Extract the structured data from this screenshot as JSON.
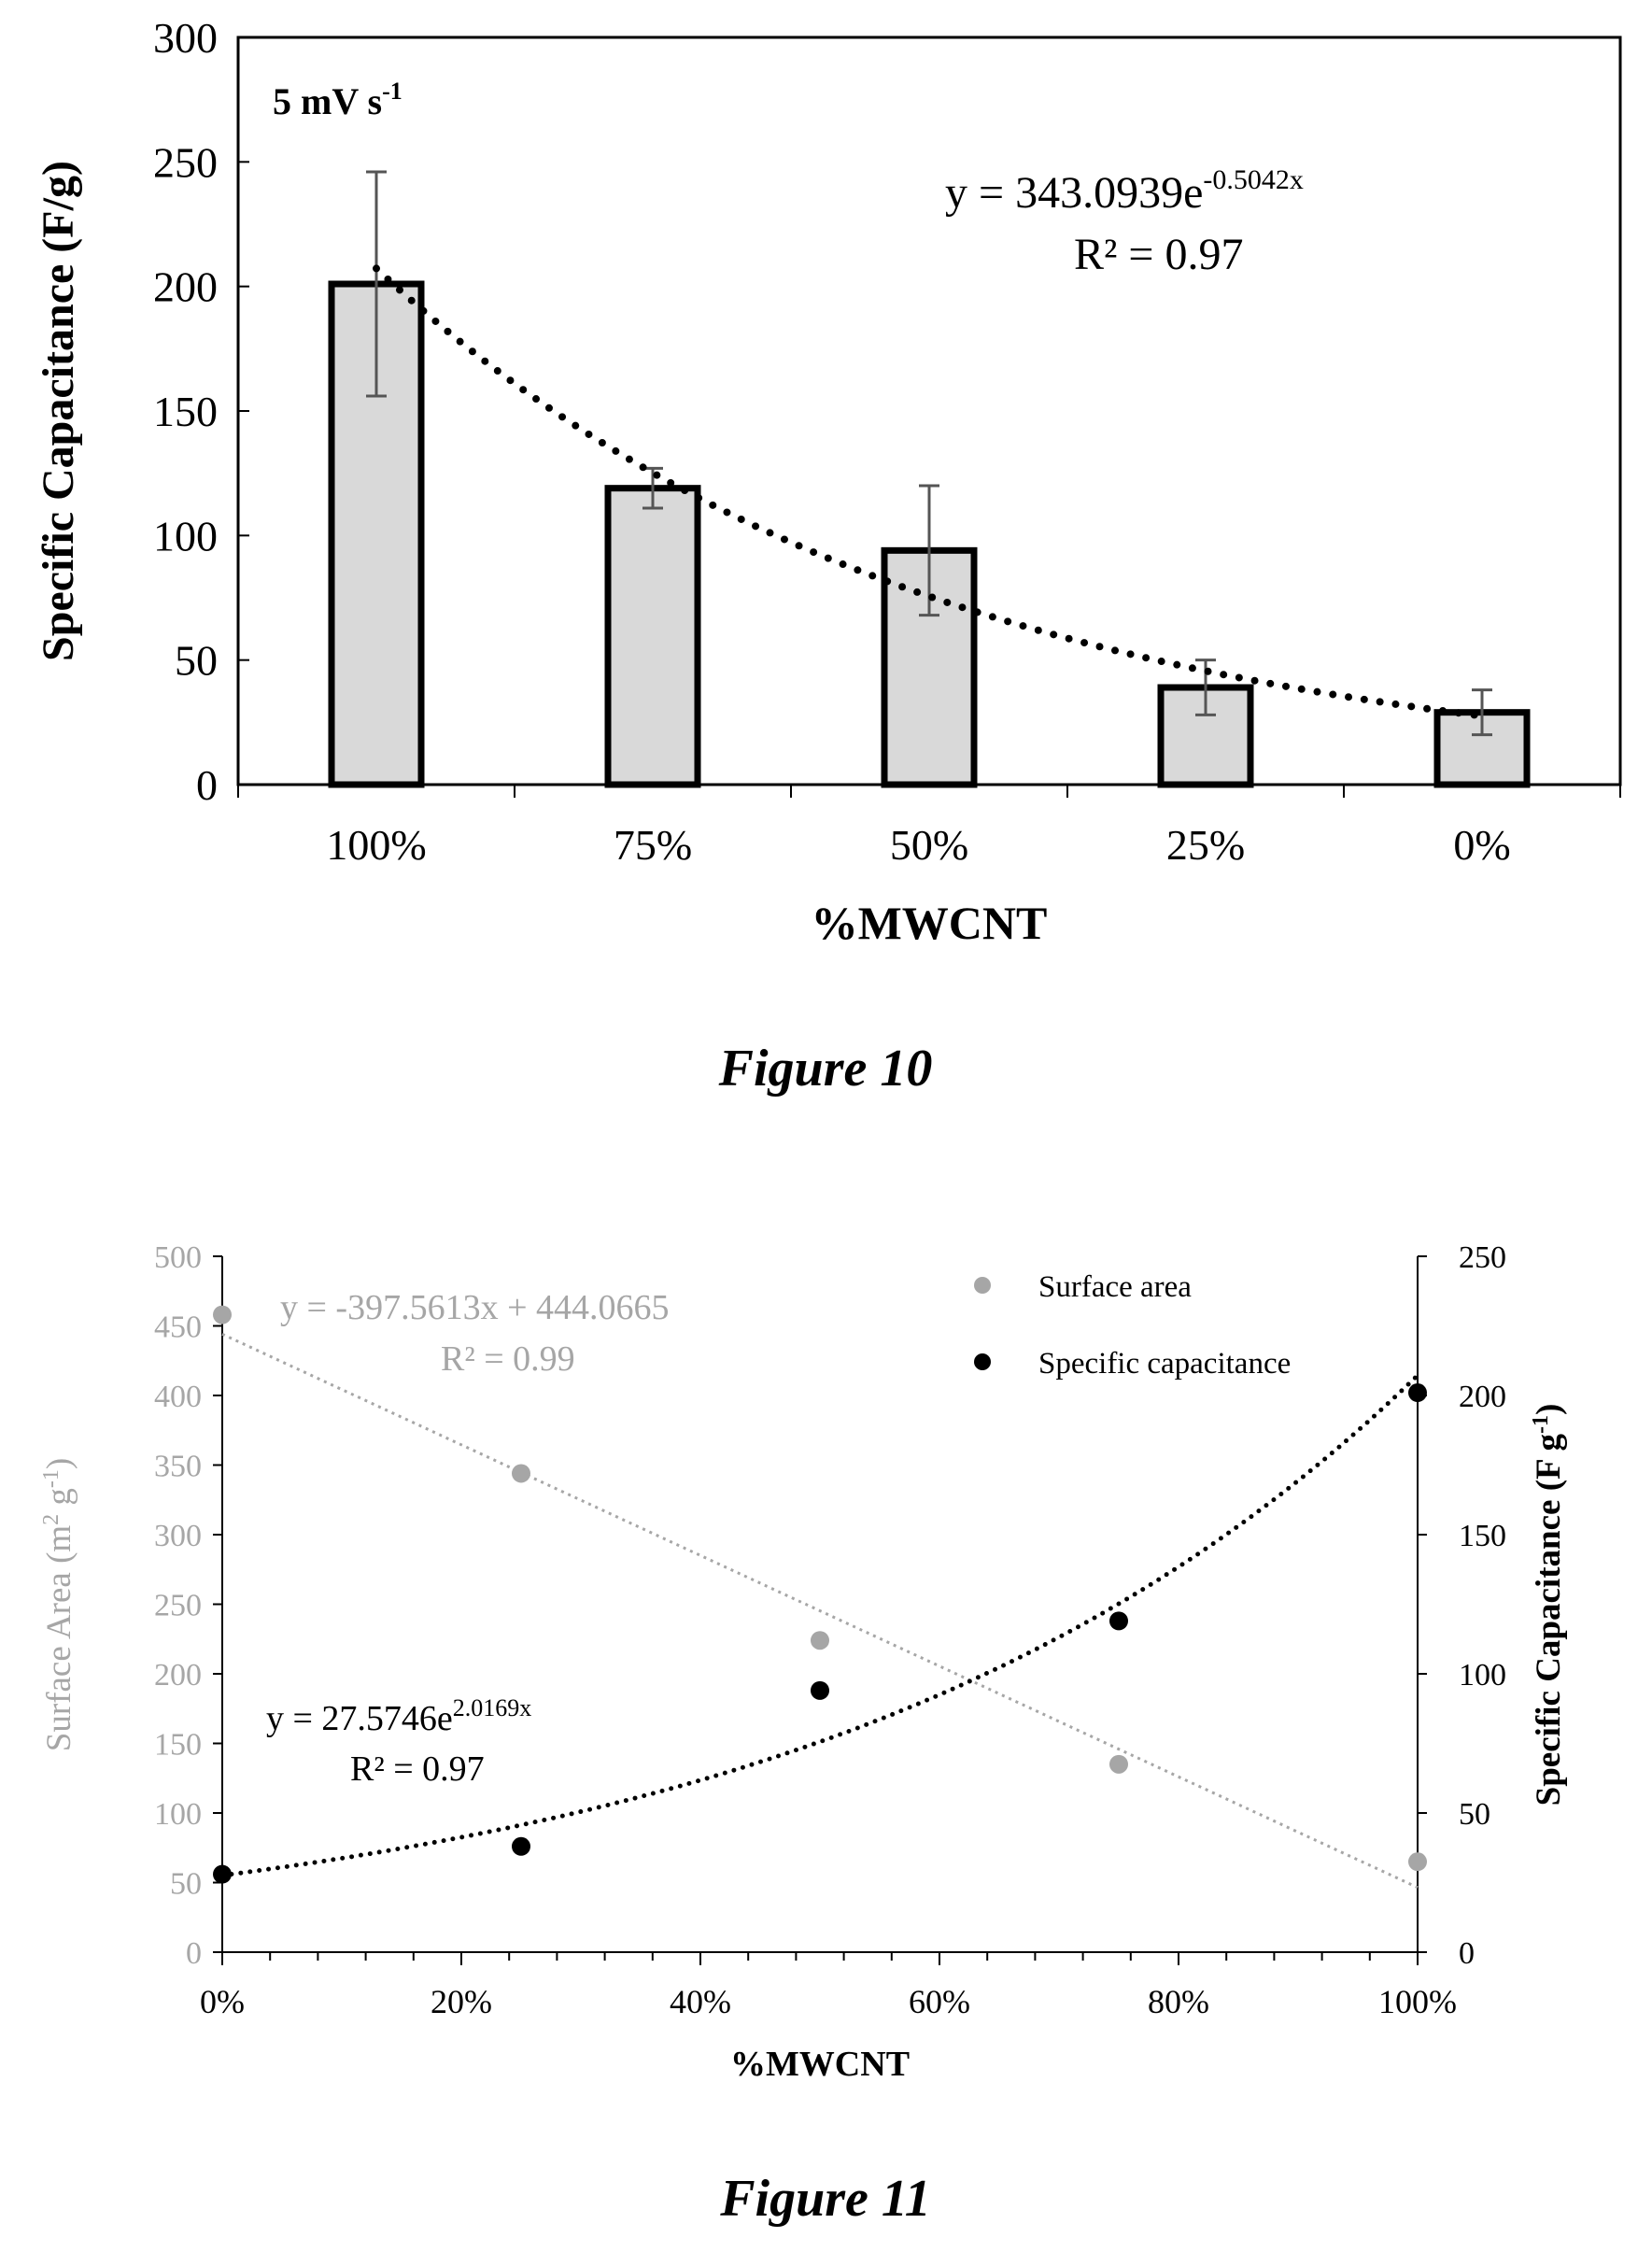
{
  "figure10": {
    "caption": "Figure 10",
    "chart_data": {
      "type": "bar",
      "categories": [
        "100%",
        "75%",
        "50%",
        "25%",
        "0%"
      ],
      "values": [
        201,
        119,
        94,
        39,
        29
      ],
      "errors": [
        45,
        8,
        26,
        11,
        9
      ],
      "xlabel": "%MWCNT",
      "ylabel": "Specific Capacitance (F/g)",
      "ylim": [
        0,
        300
      ],
      "yticks": [
        "0",
        "50",
        "100",
        "150",
        "200",
        "250",
        "300"
      ],
      "annotation": {
        "text": "5 mV s",
        "sup": "-1"
      },
      "trendline": {
        "type": "exponential",
        "a": 343.0939,
        "b": -0.5042,
        "eq_prefix": "y = 343.0939e",
        "eq_exp": "-0.5042x",
        "r2_label": "R² = 0.97"
      },
      "grid": false,
      "colors": {
        "bar_fill": "#d9d9d9",
        "bar_stroke": "#000000",
        "error": "#555555",
        "trend": "#000000"
      }
    }
  },
  "figure11": {
    "caption": "Figure 11",
    "chart_data": {
      "type": "scatter",
      "x": [
        0,
        25,
        50,
        75,
        100
      ],
      "xticks": [
        "0%",
        "20%",
        "40%",
        "60%",
        "80%",
        "100%"
      ],
      "xlim": [
        0,
        100
      ],
      "xlabel": "%MWCNT",
      "y_left": {
        "label_main": "Surface Area (m",
        "label_sup1": "2",
        "label_mid": " g",
        "label_sup2": "-1",
        "label_end": ")",
        "ylim": [
          0,
          500
        ],
        "ticks": [
          "0",
          "50",
          "100",
          "150",
          "200",
          "250",
          "300",
          "350",
          "400",
          "450",
          "500"
        ]
      },
      "y_right": {
        "label_main": "Specific Capacitance (F g",
        "label_sup": "-1",
        "label_end": ")",
        "ylim": [
          0,
          250
        ],
        "ticks": [
          "0",
          "50",
          "100",
          "150",
          "200",
          "250"
        ]
      },
      "series": [
        {
          "name": "Surface area",
          "axis": "left",
          "values": [
            458,
            344,
            224,
            135,
            65
          ],
          "color": "#a6a6a6",
          "trendline": {
            "type": "linear",
            "slope": -397.5613,
            "intercept": 444.0665,
            "eq_label": "y = -397.5613x  + 444.0665",
            "r2_label": "R² = 0.99"
          }
        },
        {
          "name": "Specific capacitance",
          "axis": "right",
          "values": [
            28,
            38,
            94,
            119,
            201
          ],
          "color": "#000000",
          "trendline": {
            "type": "exponential",
            "a": 27.5746,
            "b": 2.0169,
            "eq_prefix": "y = 27.5746e",
            "eq_exp": "2.0169x",
            "r2_label": "R² = 0.97"
          }
        }
      ],
      "legend": "top-right",
      "grid": false
    }
  }
}
